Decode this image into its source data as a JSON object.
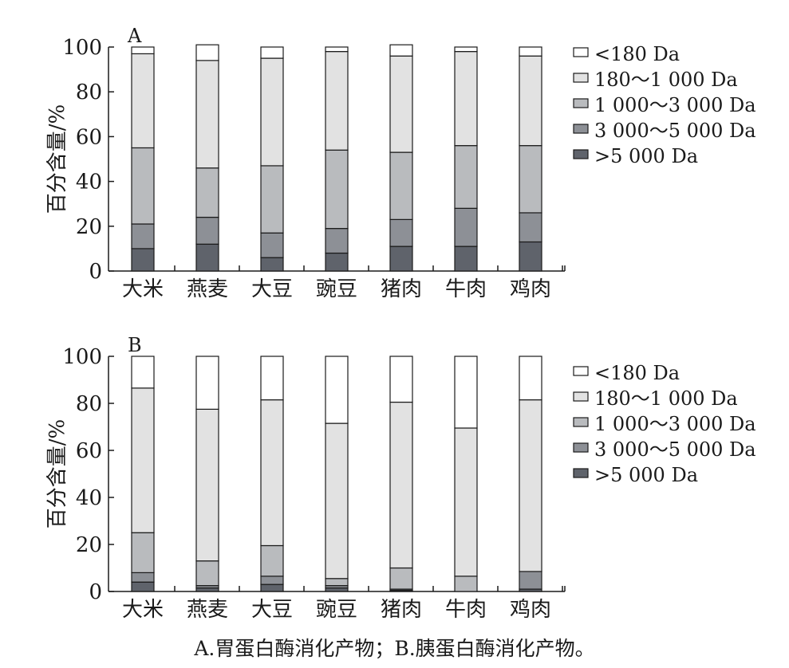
{
  "caption": "A.胃蛋白酶消化产物；B.胰蛋白酶消化产物。",
  "chart_data": [
    {
      "type": "bar",
      "stacked": true,
      "panel_label": "A",
      "ylabel": "百分含量/%",
      "ylim": [
        0,
        100
      ],
      "yticks": [
        0,
        20,
        40,
        60,
        80,
        100
      ],
      "categories": [
        "大米",
        "燕麦",
        "大豆",
        "豌豆",
        "猪肉",
        "牛肉",
        "鸡肉"
      ],
      "legend_position": "right",
      "series": [
        {
          "name": ">5 000 Da",
          "color": "#5f636b",
          "values": [
            10,
            12,
            6,
            8,
            11,
            11,
            13
          ]
        },
        {
          "name": "3 000～5 000 Da",
          "color": "#8d9096",
          "values": [
            11,
            12,
            11,
            11,
            12,
            17,
            13
          ]
        },
        {
          "name": "1 000～3 000 Da",
          "color": "#b9bbbe",
          "values": [
            34,
            22,
            30,
            35,
            30,
            28,
            30
          ]
        },
        {
          "name": "180～1 000 Da",
          "color": "#e2e2e2",
          "values": [
            42,
            48,
            48,
            44,
            43,
            42,
            40
          ]
        },
        {
          "name": "<180 Da",
          "color": "#ffffff",
          "values": [
            3,
            7,
            5,
            2,
            5,
            2,
            4
          ]
        }
      ]
    },
    {
      "type": "bar",
      "stacked": true,
      "panel_label": "B",
      "ylabel": "百分含量/%",
      "ylim": [
        0,
        100
      ],
      "yticks": [
        0,
        20,
        40,
        60,
        80,
        100
      ],
      "categories": [
        "大米",
        "燕麦",
        "大豆",
        "豌豆",
        "猪肉",
        "牛肉",
        "鸡肉"
      ],
      "legend_position": "right",
      "series": [
        {
          "name": ">5 000 Da",
          "color": "#5f636b",
          "values": [
            4,
            1.5,
            3,
            1.5,
            0.5,
            0,
            1
          ]
        },
        {
          "name": "3 000～5 000 Da",
          "color": "#8d9096",
          "values": [
            4,
            1,
            3.5,
            1,
            0.5,
            0,
            7.5
          ]
        },
        {
          "name": "1 000～3 000 Da",
          "color": "#b9bbbe",
          "values": [
            17,
            10.5,
            13,
            3,
            9,
            6.5,
            0
          ]
        },
        {
          "name": "180～1 000 Da",
          "color": "#e2e2e2",
          "values": [
            61.5,
            64.5,
            62,
            66,
            70.5,
            63,
            73
          ]
        },
        {
          "name": "<180 Da",
          "color": "#ffffff",
          "values": [
            13.5,
            22.5,
            18.5,
            28.5,
            19.5,
            30.5,
            18.5
          ]
        }
      ]
    }
  ]
}
